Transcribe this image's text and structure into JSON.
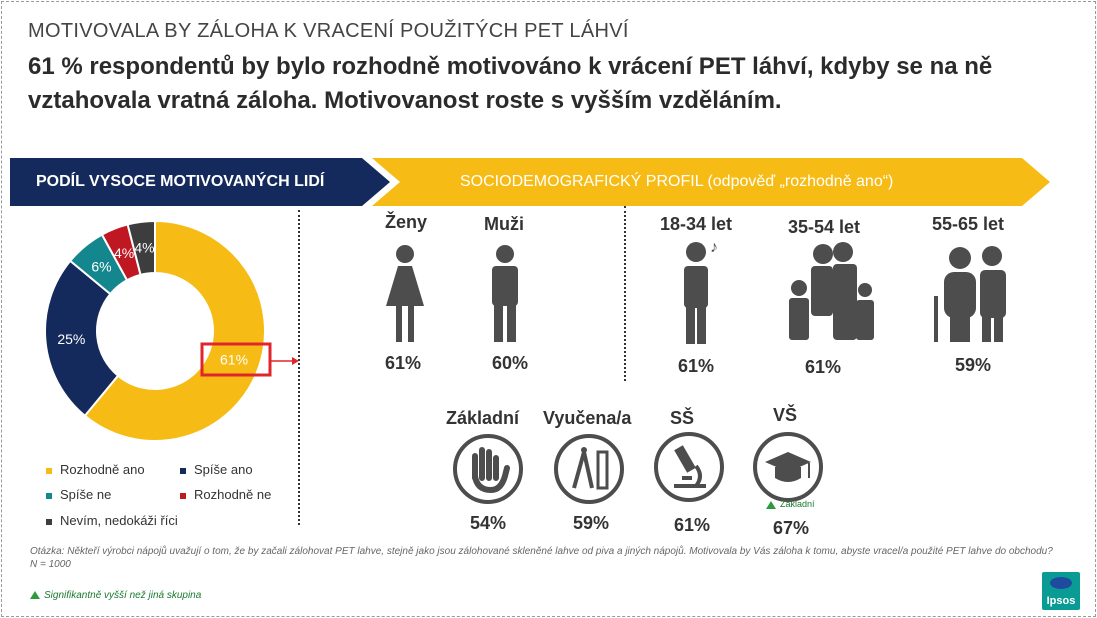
{
  "header": {
    "kicker": "MOTIVOVALA BY ZÁLOHA K VRACENÍ POUŽITÝCH PET LÁHVÍ",
    "headline": "61 % respondentů by bylo rozhodně motivováno k vrácení PET láhví, kdyby se na ně vztahovala vratná záloha. Motivovanost roste s vyšším vzděláním."
  },
  "bands": {
    "left": "PODÍL VYSOCE MOTIVOVANÝCH LIDÍ",
    "right": "SOCIODEMOGRAFICKÝ PROFIL (odpověď „rozhodně ano“)"
  },
  "chart_data": [
    {
      "type": "pie",
      "categories": [
        "Rozhodně ano",
        "Spíše ano",
        "Spíše ne",
        "Rozhodně ne",
        "Nevím, nedokáži říci"
      ],
      "values": [
        61,
        25,
        6,
        4,
        4
      ],
      "labels": [
        "61%",
        "25%",
        "6%",
        "4%",
        "4%"
      ],
      "colors": [
        "#f6bb14",
        "#152a5c",
        "#14868e",
        "#c01822",
        "#3d3d3d"
      ],
      "legend_position": "bottom",
      "highlight": "61%"
    },
    {
      "type": "table",
      "groups": [
        {
          "label": "Ženy",
          "value": "61%",
          "icon": "woman-icon"
        },
        {
          "label": "Muži",
          "value": "60%",
          "icon": "man-icon"
        },
        {
          "label": "18-34 let",
          "value": "61%",
          "icon": "young-person-icon"
        },
        {
          "label": "35-54 let",
          "value": "61%",
          "icon": "family-icon"
        },
        {
          "label": "55-65 let",
          "value": "59%",
          "icon": "elderly-couple-icon"
        }
      ],
      "education": [
        {
          "label": "Základní",
          "value": "54%",
          "icon": "hand-icon"
        },
        {
          "label": "Vyučena/a",
          "value": "59%",
          "icon": "compass-ruler-icon"
        },
        {
          "label": "SŠ",
          "value": "61%",
          "icon": "microscope-icon"
        },
        {
          "label": "VŠ",
          "value": "67%",
          "icon": "graduation-cap-icon",
          "note": "Základní"
        }
      ]
    }
  ],
  "footer": {
    "question": "Otázka: Někteří výrobci nápojů uvažují o tom, že by začali zálohovat PET lahve, stejně jako jsou zálohované skleněné lahve od piva a jiných nápojů. Motivovala by Vás záloha k tomu, abyste vracel/a použité PET lahve do obchodu?",
    "n": "N = 1000",
    "significance": "Signifikantně vyšší než jiná skupina",
    "logo": "Ipsos"
  },
  "colors": {
    "accent": "#f6bb14",
    "navy": "#152a5c",
    "significance": "#2d9a3e",
    "highlight": "#e0252b"
  }
}
